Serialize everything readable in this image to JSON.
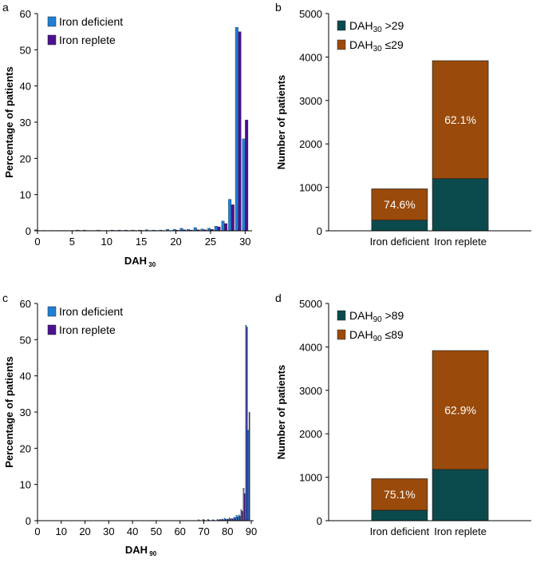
{
  "colors": {
    "iron_deficient": "#1f7fd6",
    "iron_replete": "#4b1290",
    "above": "#0b4a4c",
    "below": "#9a4a0a"
  },
  "chart_data": [
    {
      "panel": "a",
      "type": "bar",
      "ylabel": "Percentage of patients",
      "xlabel_main": "DAH",
      "xlabel_sub": "30",
      "xticks": [
        0,
        5,
        10,
        15,
        20,
        25,
        30
      ],
      "yticks": [
        0,
        10,
        20,
        30,
        40,
        50,
        60
      ],
      "xlim": [
        0,
        31
      ],
      "ylim": [
        0,
        60
      ],
      "legend": [
        "Iron deficient",
        "Iron replete"
      ],
      "series": [
        {
          "name": "Iron deficient",
          "x": [
            0,
            1,
            2,
            3,
            4,
            5,
            6,
            7,
            8,
            9,
            10,
            11,
            12,
            13,
            14,
            15,
            16,
            17,
            18,
            19,
            20,
            21,
            22,
            23,
            24,
            25,
            26,
            27,
            28,
            29,
            30
          ],
          "values": [
            0.3,
            0.1,
            0.1,
            0.1,
            0.1,
            0.1,
            0.2,
            0.2,
            0.1,
            0.2,
            0.1,
            0.2,
            0.2,
            0.2,
            0.2,
            0.2,
            0.3,
            0.2,
            0.2,
            0.4,
            0.4,
            0.7,
            0.4,
            0.9,
            0.5,
            0.7,
            1.3,
            2.7,
            8.7,
            56.2,
            25.4
          ]
        },
        {
          "name": "Iron replete",
          "x": [
            0,
            1,
            2,
            3,
            4,
            5,
            6,
            7,
            8,
            9,
            10,
            11,
            12,
            13,
            14,
            15,
            16,
            17,
            18,
            19,
            20,
            21,
            22,
            23,
            24,
            25,
            26,
            27,
            28,
            29,
            30
          ],
          "values": [
            0.1,
            0.1,
            0.1,
            0.1,
            0.1,
            0.1,
            0.1,
            0.1,
            0.1,
            0.1,
            0.1,
            0.1,
            0.1,
            0.1,
            0.1,
            0.1,
            0.1,
            0.1,
            0.1,
            0.1,
            0.2,
            0.3,
            0.2,
            0.3,
            0.3,
            0.4,
            1.1,
            2.0,
            7.2,
            55.0,
            30.6
          ]
        }
      ]
    },
    {
      "panel": "b",
      "type": "bar",
      "stacked": true,
      "ylabel": "Number of patients",
      "categories": [
        "Iron deficient",
        "Iron replete"
      ],
      "yticks": [
        0,
        1000,
        2000,
        3000,
        4000,
        5000
      ],
      "ylim": [
        0,
        5000
      ],
      "legend": [
        {
          "main": "DAH",
          "sub": "30",
          "rest": " >29"
        },
        {
          "main": "DAH",
          "sub": "30",
          "rest": " ≤29"
        }
      ],
      "series": [
        {
          "name": "DAH30 >29",
          "values": [
            245,
            1200
          ]
        },
        {
          "name": "DAH30 ≤29",
          "values": [
            720,
            2715
          ]
        }
      ],
      "bar_labels": [
        "74.6%",
        "62.1%"
      ]
    },
    {
      "panel": "c",
      "type": "bar",
      "ylabel": "Percentage of patients",
      "xlabel_main": "DAH",
      "xlabel_sub": "90",
      "xticks": [
        0,
        10,
        20,
        30,
        40,
        50,
        60,
        70,
        80,
        90
      ],
      "yticks": [
        0,
        10,
        20,
        30,
        40,
        50,
        60
      ],
      "xlim": [
        0,
        91
      ],
      "ylim": [
        0,
        60
      ],
      "legend": [
        "Iron deficient",
        "Iron replete"
      ],
      "series": [
        {
          "name": "Iron deficient",
          "x": [
            68,
            70,
            72,
            74,
            76,
            77,
            78,
            79,
            80,
            81,
            82,
            83,
            84,
            85,
            86,
            87,
            88,
            89,
            90
          ],
          "values": [
            0.3,
            0.4,
            0.4,
            0.3,
            0.4,
            0.4,
            0.5,
            0.7,
            0.5,
            0.8,
            0.6,
            1.0,
            1.5,
            1.6,
            3.1,
            9.0,
            54.0,
            25.0,
            0
          ]
        },
        {
          "name": "Iron replete",
          "x": [
            68,
            70,
            72,
            74,
            76,
            77,
            78,
            79,
            80,
            81,
            82,
            83,
            84,
            85,
            86,
            87,
            88,
            89,
            90
          ],
          "values": [
            0.1,
            0.2,
            0.2,
            0.2,
            0.2,
            0.3,
            0.3,
            0.4,
            0.4,
            0.5,
            0.5,
            0.8,
            1.1,
            1.3,
            2.6,
            7.5,
            53.5,
            30.0,
            0
          ]
        }
      ]
    },
    {
      "panel": "d",
      "type": "bar",
      "stacked": true,
      "ylabel": "Number of patients",
      "categories": [
        "Iron deficient",
        "Iron replete"
      ],
      "yticks": [
        0,
        1000,
        2000,
        3000,
        4000,
        5000
      ],
      "ylim": [
        0,
        5000
      ],
      "legend": [
        {
          "main": "DAH",
          "sub": "90",
          "rest": " >89"
        },
        {
          "main": "DAH",
          "sub": "90",
          "rest": " ≤89"
        }
      ],
      "series": [
        {
          "name": "DAH90 >89",
          "values": [
            240,
            1180
          ]
        },
        {
          "name": "DAH90 ≤89",
          "values": [
            725,
            2735
          ]
        }
      ],
      "bar_labels": [
        "75.1%",
        "62.9%"
      ]
    }
  ]
}
